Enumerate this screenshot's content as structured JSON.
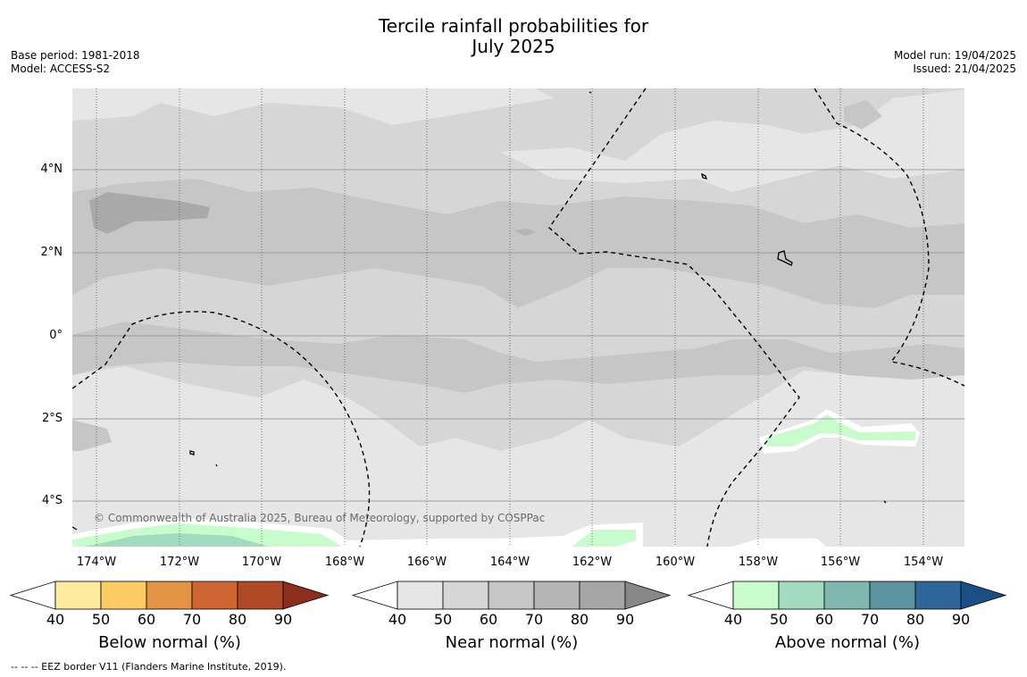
{
  "title_line1": "Tercile rainfall probabilities for",
  "title_line2": "July 2025",
  "base_period": "Base period: 1981-2018",
  "model": "Model: ACCESS-S2",
  "model_run": "Model run: 19/04/2025",
  "issued": "Issued: 21/04/2025",
  "copyright": "© Commonwealth of Australia 2025, Bureau of Meteorology, supported by COSPPac",
  "lat_labels": [
    "4°N",
    "2°N",
    "0°",
    "2°S",
    "4°S"
  ],
  "lon_labels": [
    "174°W",
    "172°W",
    "170°W",
    "168°W",
    "166°W",
    "164°W",
    "162°W",
    "160°W",
    "158°W",
    "156°W",
    "154°W"
  ],
  "colorbars": [
    {
      "title": "Below normal (%)",
      "ticks": [
        "40",
        "50",
        "60",
        "70",
        "80",
        "90"
      ],
      "colors": [
        "#ffffff",
        "#fee99c",
        "#fdcb63",
        "#e29344",
        "#cf6433",
        "#b04926",
        "#8b2e1c"
      ]
    },
    {
      "title": "Near normal (%)",
      "ticks": [
        "40",
        "50",
        "60",
        "70",
        "80",
        "90"
      ],
      "colors": [
        "#ffffff",
        "#e6e6e6",
        "#d6d6d6",
        "#c6c6c6",
        "#b5b5b5",
        "#a6a6a6",
        "#888888"
      ]
    },
    {
      "title": "Above normal (%)",
      "ticks": [
        "40",
        "50",
        "60",
        "70",
        "80",
        "90"
      ],
      "colors": [
        "#ffffff",
        "#c8fccc",
        "#a3dbc0",
        "#80b8b0",
        "#5c93a1",
        "#2e6699",
        "#194f86"
      ]
    }
  ],
  "footnote": "-- -- -- EEZ border V11 (Flanders Marine Institute, 2019)."
}
